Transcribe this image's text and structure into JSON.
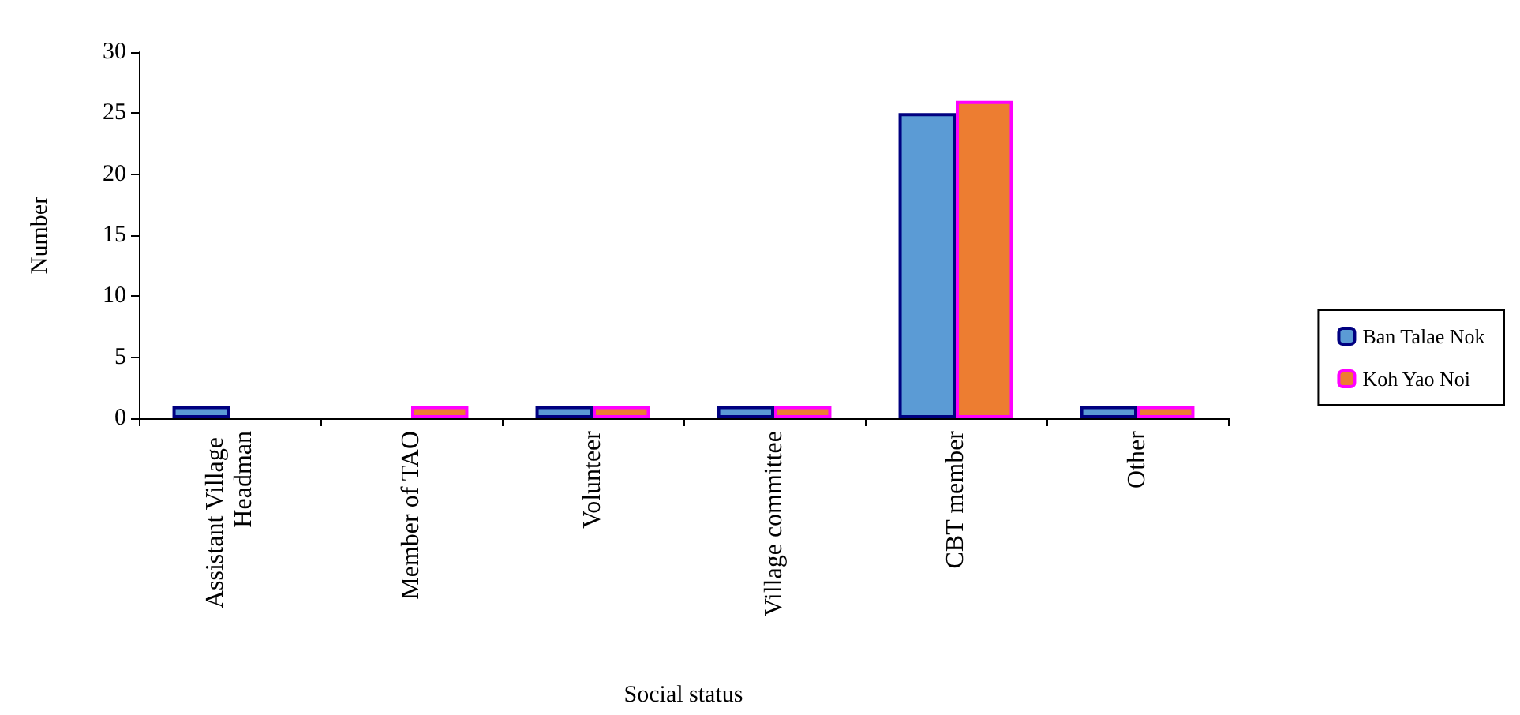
{
  "chart_data": {
    "type": "bar",
    "xlabel": "Social status",
    "ylabel": "Number",
    "categories": [
      "Assistant Village Headman",
      "Member of TAO",
      "Volunteer",
      "Village committee",
      "CBT member",
      "Other"
    ],
    "series": [
      {
        "name": "Ban Talae Nok",
        "color": "#5b9bd5",
        "values": [
          1,
          0,
          1,
          1,
          25,
          1
        ]
      },
      {
        "name": "Koh Yao Noi",
        "color": "#ed7d31",
        "values": [
          0,
          1,
          1,
          1,
          26,
          1
        ]
      }
    ],
    "ylim": [
      0,
      30
    ],
    "yticks": [
      0,
      5,
      10,
      15,
      20,
      25,
      30
    ],
    "grid": false,
    "legend": "right"
  }
}
